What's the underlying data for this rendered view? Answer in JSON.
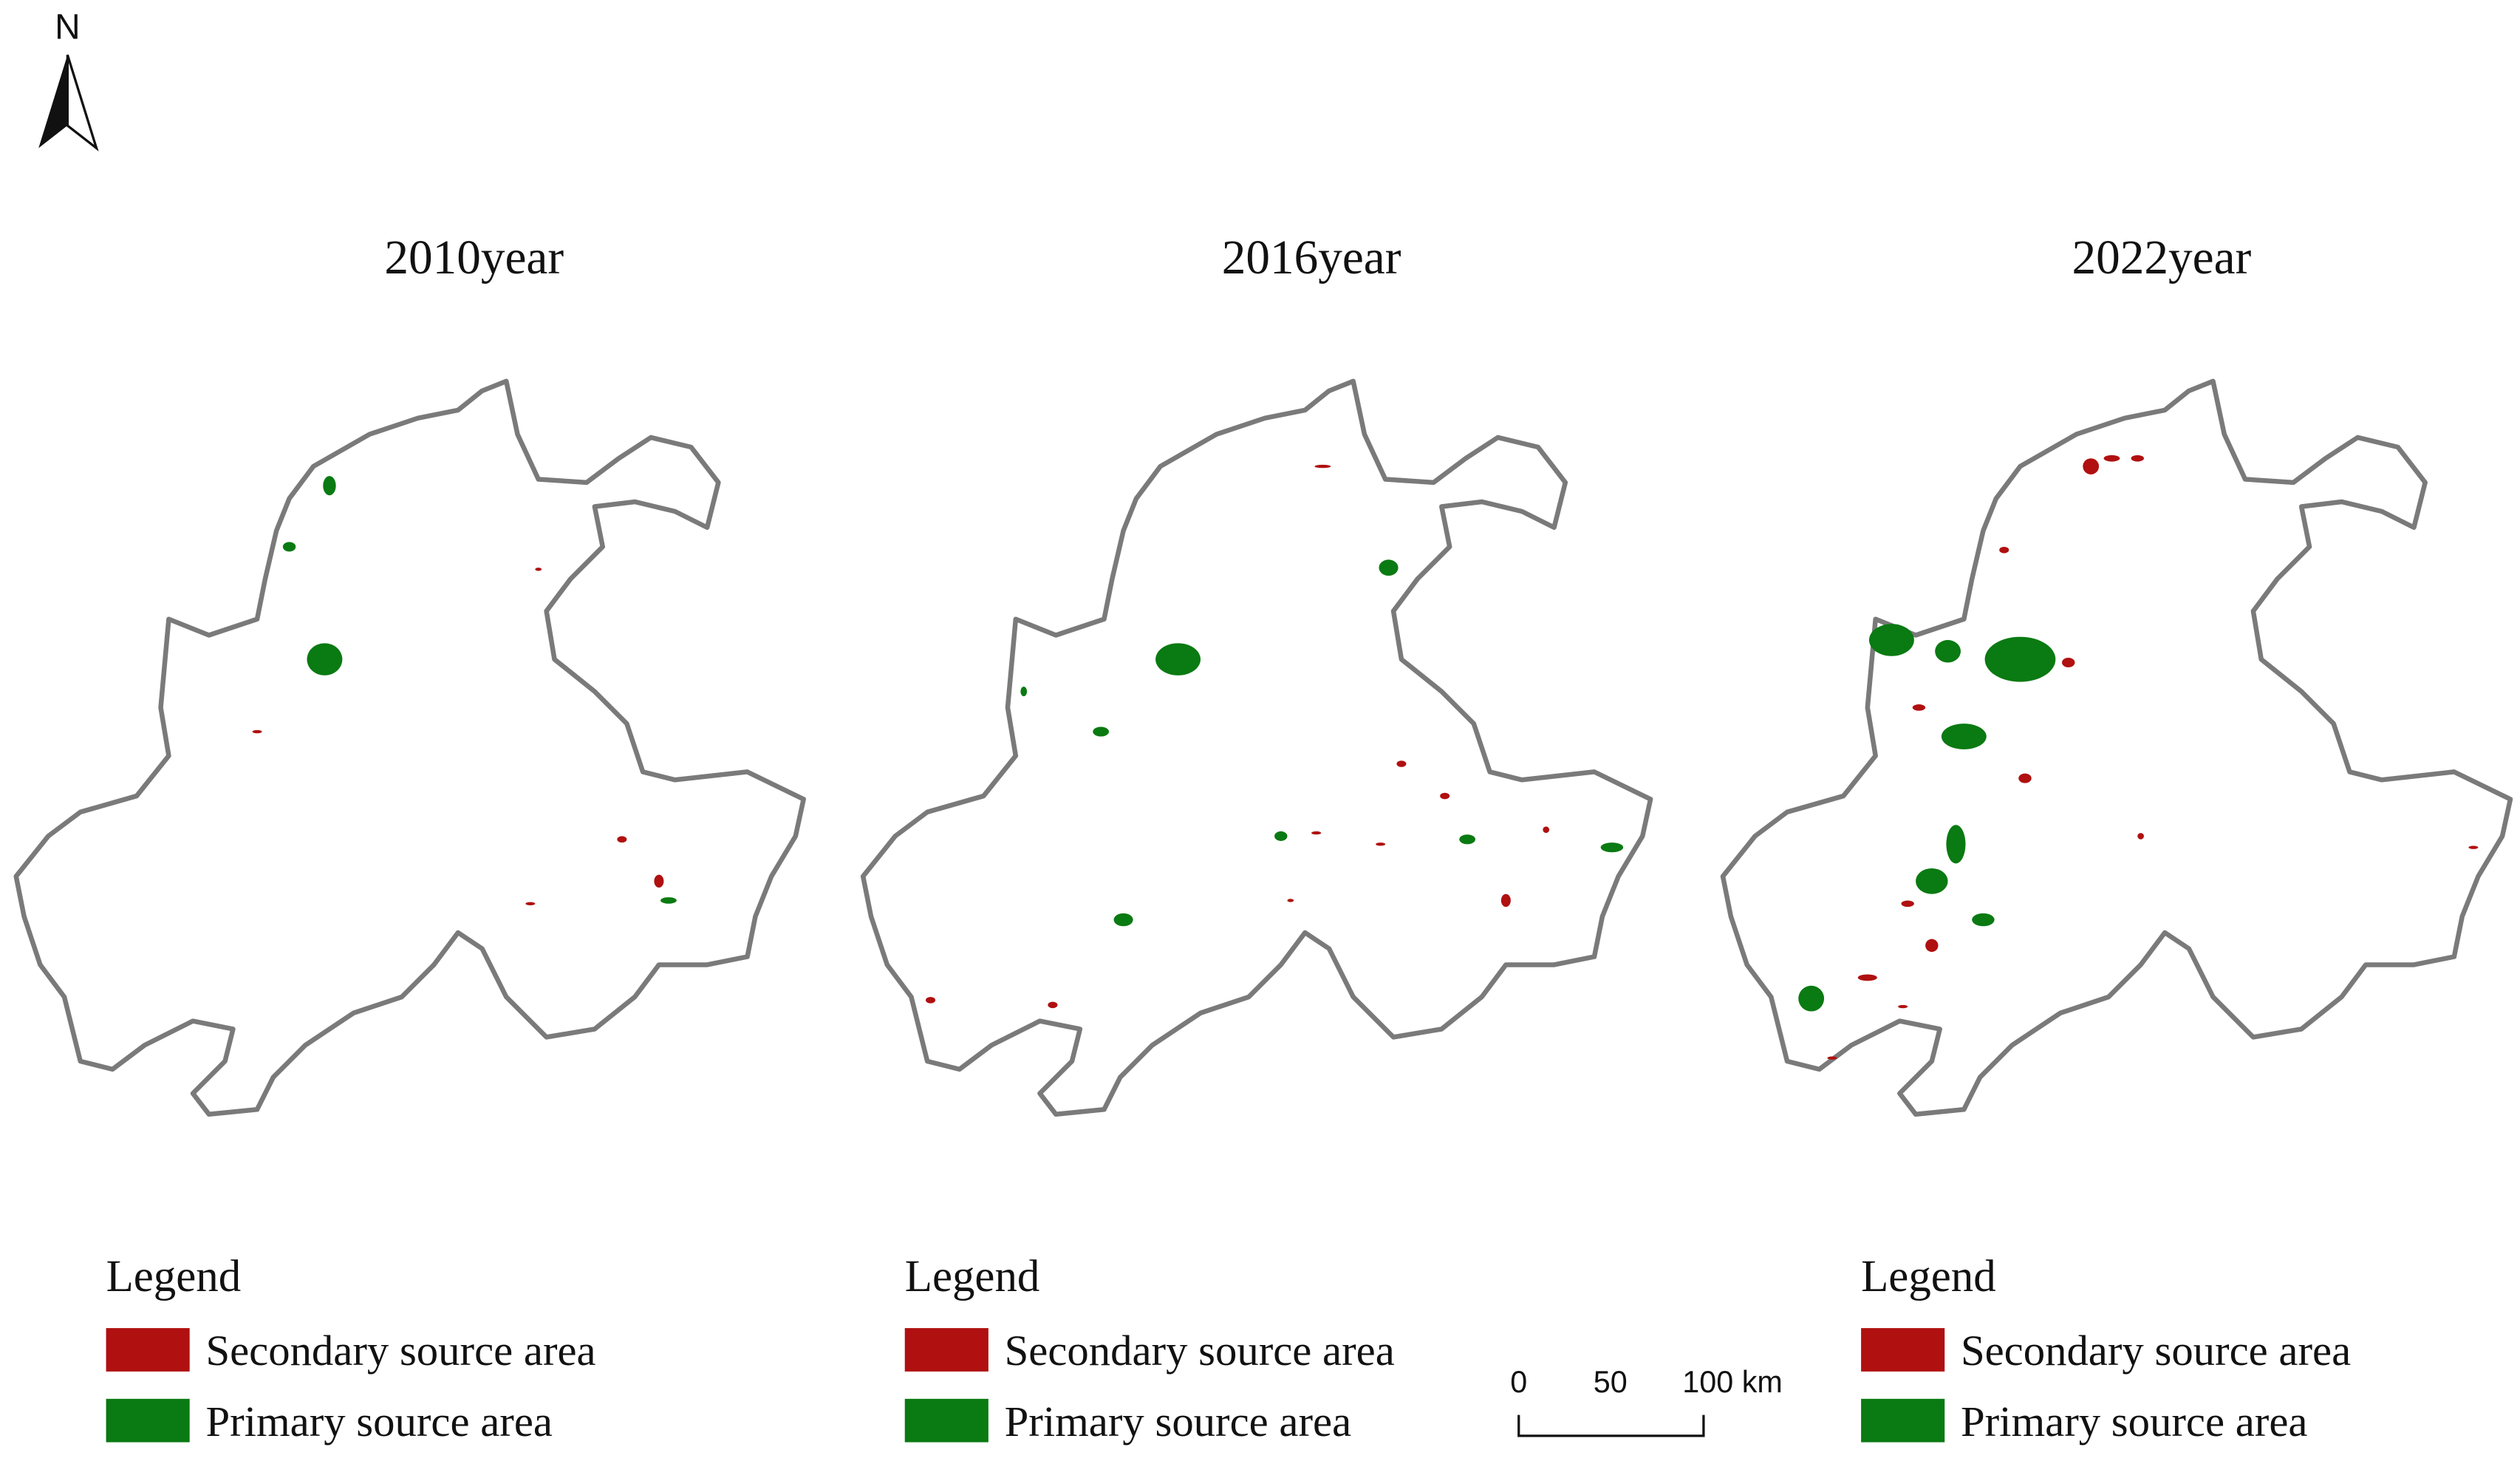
{
  "north": "N",
  "panels": [
    {
      "title": "2010year",
      "legend": {
        "title": "Legend",
        "items": [
          "Secondary source area",
          "Primary source area"
        ]
      }
    },
    {
      "title": "2016year",
      "legend": {
        "title": "Legend",
        "items": [
          "Secondary source area",
          "Primary source area"
        ]
      }
    },
    {
      "title": "2022year",
      "legend": {
        "title": "Legend",
        "items": [
          "Secondary source area",
          "Primary source area"
        ]
      }
    }
  ],
  "scale_bar": {
    "labels": [
      "0",
      "50",
      "100 km"
    ]
  }
}
